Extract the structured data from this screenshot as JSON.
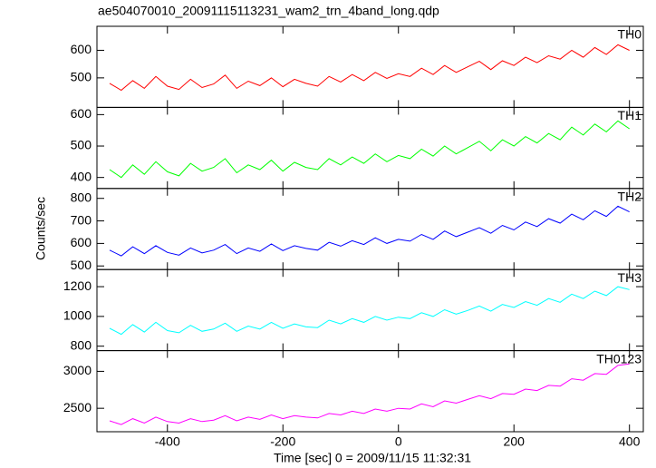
{
  "chart_data": {
    "type": "line",
    "title": "ae504070010_20091115113231_wam2_trn_4band_long.qdp",
    "x_label": "Time [sec] 0 = 2009/11/15 11:32:31",
    "y_label": "Counts/sec",
    "xlim": [
      -522,
      424
    ],
    "xticks": [
      -400,
      -200,
      0,
      200,
      400
    ],
    "x": [
      -500,
      -480,
      -460,
      -440,
      -420,
      -400,
      -380,
      -360,
      -340,
      -320,
      -300,
      -280,
      -260,
      -240,
      -220,
      -200,
      -180,
      -160,
      -140,
      -120,
      -100,
      -80,
      -60,
      -40,
      -20,
      0,
      20,
      40,
      60,
      80,
      100,
      120,
      140,
      160,
      180,
      200,
      220,
      240,
      260,
      280,
      300,
      320,
      340,
      360,
      380,
      400
    ],
    "series": [
      {
        "name": "TH0",
        "color": "#ff0000",
        "ylim": [
          393,
          687
        ],
        "yticks": [
          500,
          600
        ],
        "values": [
          480,
          455,
          490,
          462,
          505,
          470,
          458,
          495,
          465,
          478,
          510,
          462,
          488,
          472,
          500,
          468,
          495,
          480,
          470,
          505,
          485,
          512,
          490,
          520,
          498,
          515,
          505,
          535,
          512,
          545,
          520,
          540,
          560,
          530,
          562,
          545,
          575,
          555,
          580,
          568,
          600,
          575,
          610,
          585,
          620,
          600
        ]
      },
      {
        "name": "TH1",
        "color": "#00ff00",
        "ylim": [
          365,
          623
        ],
        "yticks": [
          400,
          500,
          600
        ],
        "values": [
          425,
          400,
          440,
          410,
          450,
          418,
          405,
          445,
          420,
          432,
          460,
          415,
          440,
          425,
          455,
          420,
          448,
          432,
          425,
          460,
          440,
          465,
          445,
          475,
          450,
          470,
          460,
          490,
          468,
          500,
          475,
          495,
          515,
          485,
          520,
          500,
          530,
          510,
          540,
          520,
          560,
          535,
          570,
          545,
          580,
          555
        ]
      },
      {
        "name": "TH2",
        "color": "#0000ff",
        "ylim": [
          484,
          844
        ],
        "yticks": [
          500,
          600,
          700,
          800
        ],
        "values": [
          570,
          545,
          585,
          555,
          590,
          560,
          548,
          580,
          558,
          570,
          595,
          555,
          580,
          565,
          598,
          568,
          590,
          578,
          570,
          605,
          588,
          612,
          595,
          625,
          600,
          618,
          610,
          640,
          618,
          655,
          630,
          650,
          670,
          645,
          680,
          660,
          695,
          675,
          710,
          690,
          730,
          705,
          745,
          720,
          765,
          740
        ]
      },
      {
        "name": "TH3",
        "color": "#00ffff",
        "ylim": [
          770,
          1315
        ],
        "yticks": [
          800,
          1000,
          1200
        ],
        "values": [
          920,
          880,
          945,
          895,
          960,
          905,
          890,
          940,
          900,
          915,
          955,
          900,
          935,
          915,
          960,
          920,
          950,
          930,
          925,
          975,
          950,
          985,
          960,
          1000,
          975,
          995,
          985,
          1025,
          1000,
          1045,
          1015,
          1040,
          1070,
          1035,
          1080,
          1060,
          1100,
          1075,
          1120,
          1095,
          1150,
          1120,
          1170,
          1140,
          1200,
          1180
        ]
      },
      {
        "name": "TH0123",
        "color": "#ff00ff",
        "ylim": [
          2183,
          3280
        ],
        "yticks": [
          2500,
          3000
        ],
        "values": [
          2330,
          2280,
          2360,
          2300,
          2380,
          2320,
          2300,
          2360,
          2320,
          2340,
          2400,
          2330,
          2380,
          2350,
          2410,
          2360,
          2400,
          2380,
          2370,
          2430,
          2410,
          2460,
          2430,
          2490,
          2460,
          2500,
          2490,
          2560,
          2520,
          2600,
          2570,
          2620,
          2670,
          2630,
          2700,
          2690,
          2760,
          2740,
          2810,
          2800,
          2900,
          2880,
          2970,
          2960,
          3080,
          3100
        ]
      }
    ]
  }
}
